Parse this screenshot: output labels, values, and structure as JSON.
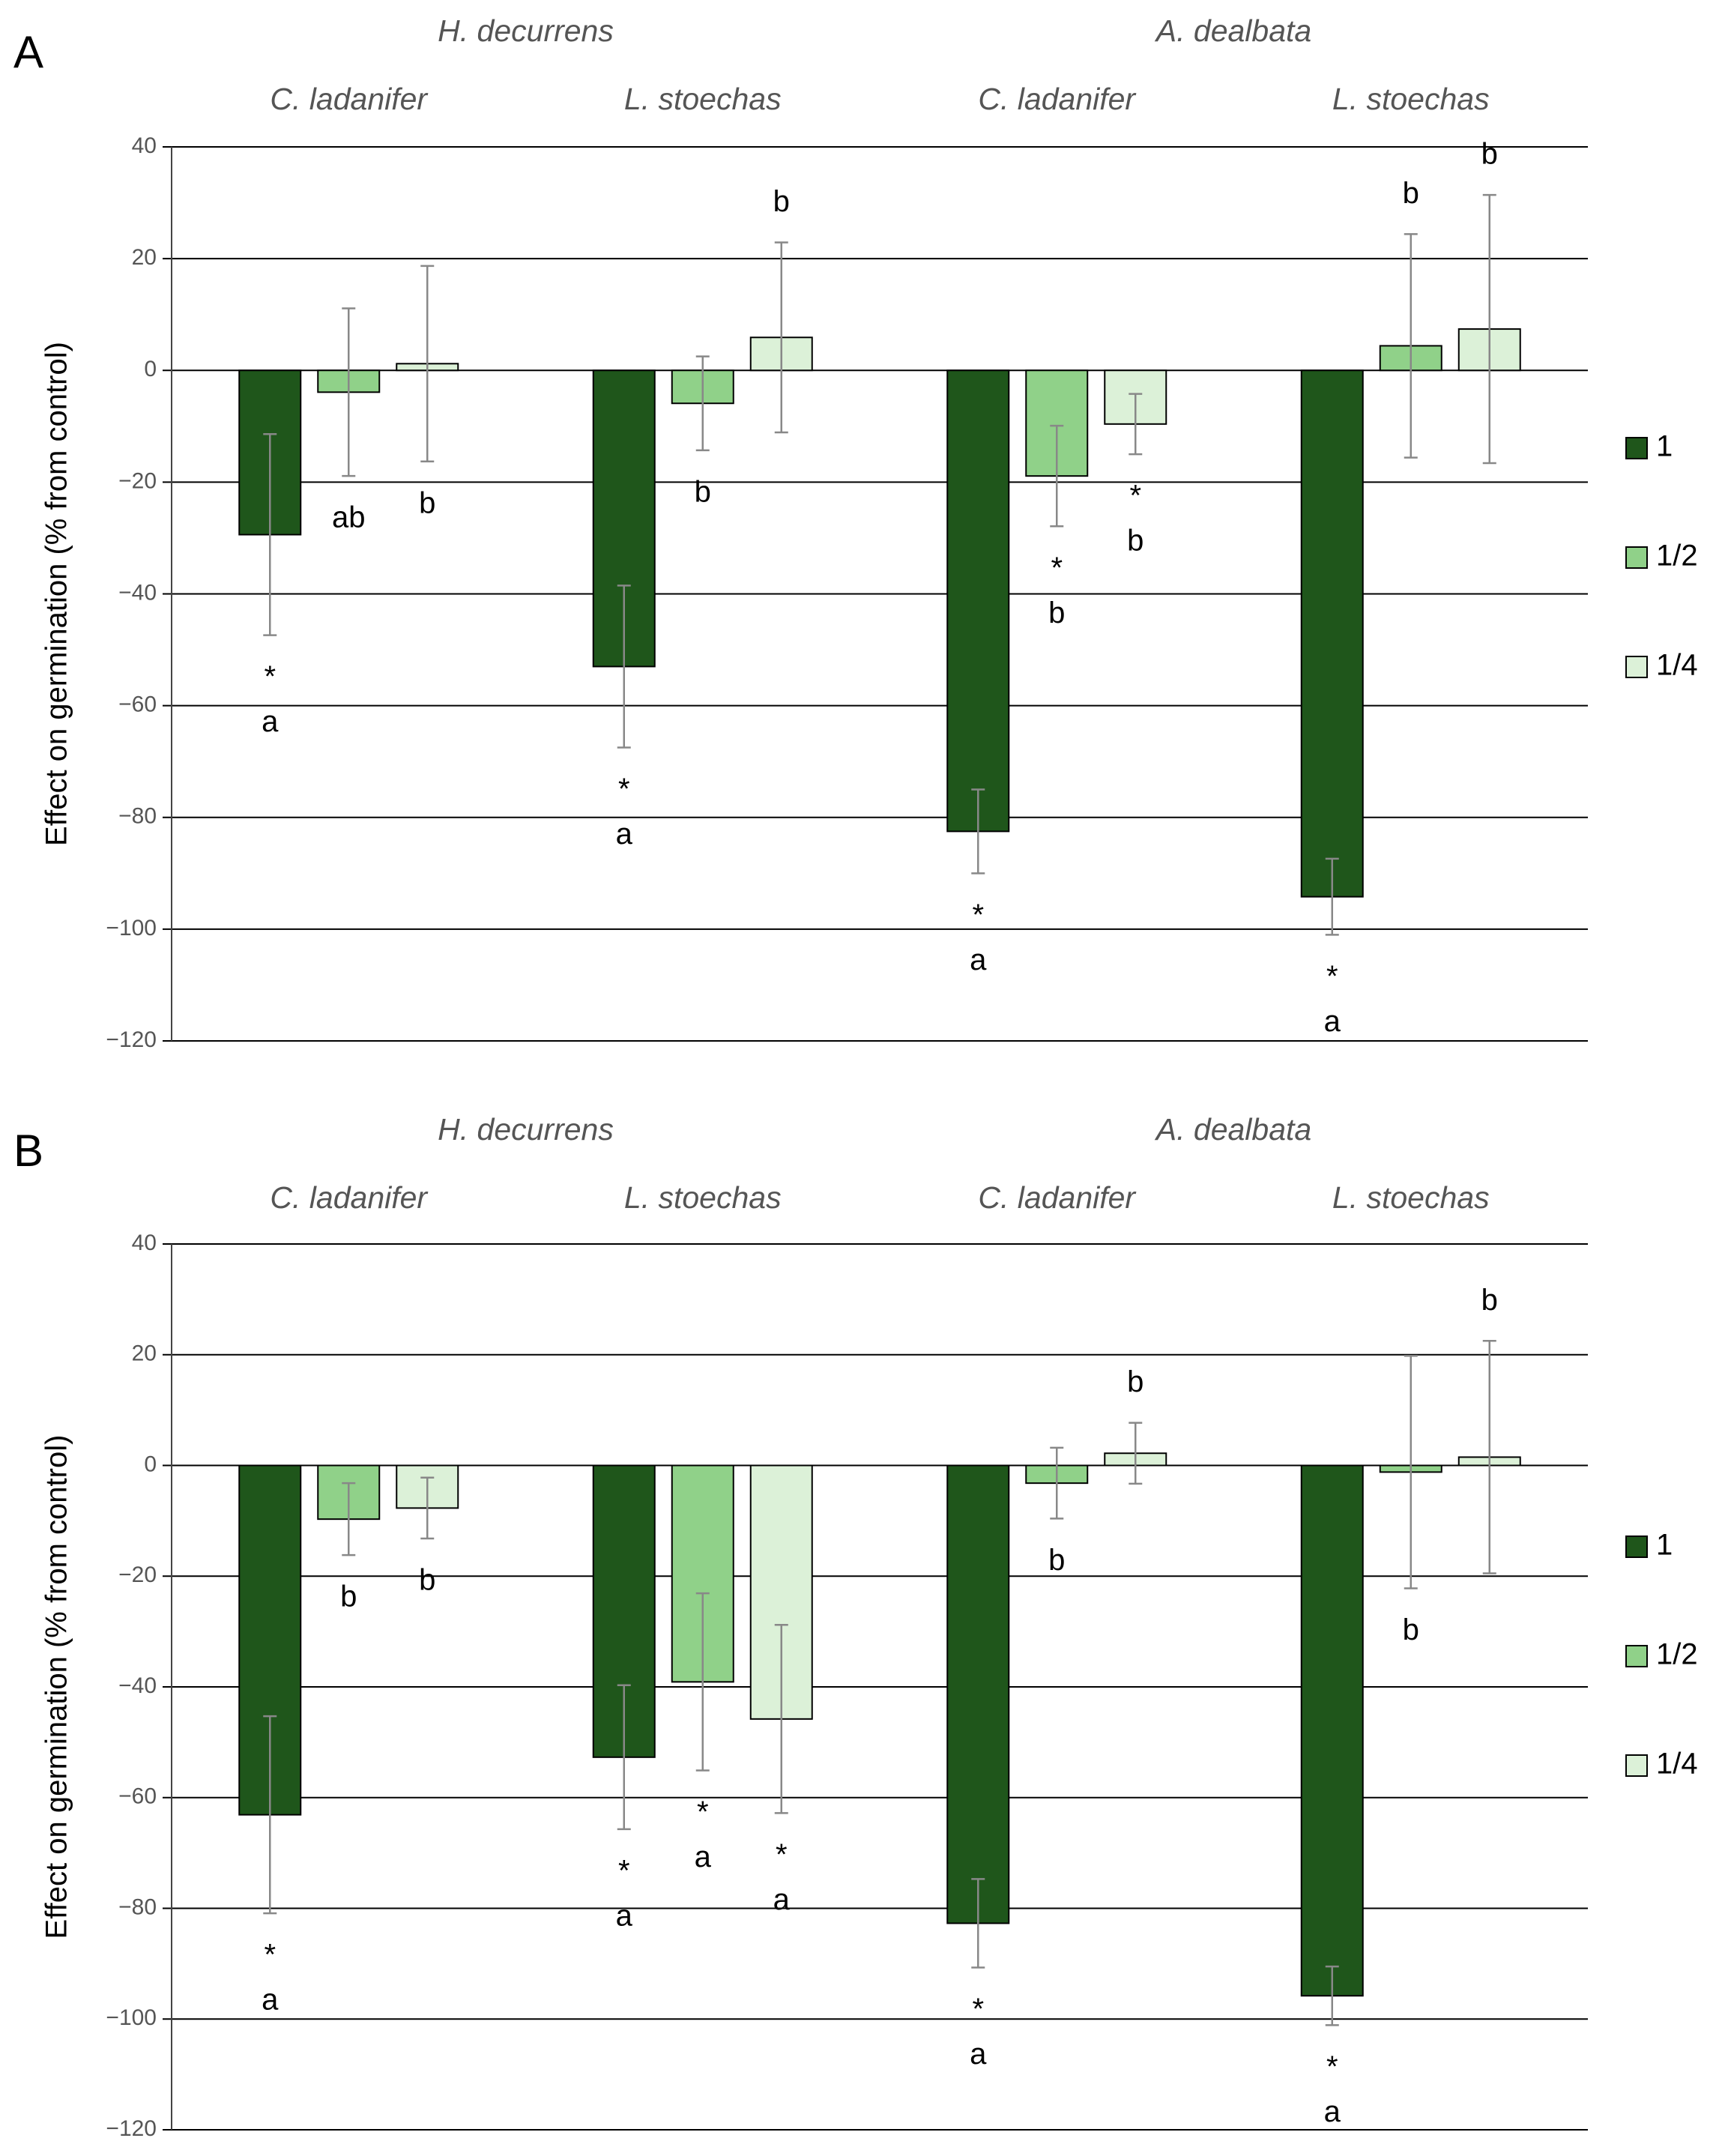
{
  "chart_data": [
    {
      "type": "bar",
      "panel": "A",
      "group_titles": [
        "H. decurrens",
        "A. dealbata"
      ],
      "categories": [
        "C. ladanifer",
        "L. stoechas",
        "C. ladanifer",
        "L. stoechas"
      ],
      "ylabel": "Effect on germination (% from control)",
      "ylim": [
        -120,
        40
      ],
      "yticks": [
        {
          "value": -120,
          "label": "−120"
        },
        {
          "value": -100,
          "label": "−100"
        },
        {
          "value": -80,
          "label": "−80"
        },
        {
          "value": -60,
          "label": "−60"
        },
        {
          "value": -40,
          "label": "−40"
        },
        {
          "value": -20,
          "label": "−20"
        },
        0,
        20,
        40
      ],
      "grid": true,
      "series": [
        {
          "name": "1",
          "color": "#1f561b",
          "values": [
            -29.4,
            -53,
            -82.5,
            -94.2
          ],
          "errors": [
            18,
            14.5,
            7.5,
            6.8
          ],
          "letters": [
            "a",
            "a",
            "a",
            "a"
          ],
          "asterisks": [
            "*",
            "*",
            "*",
            "*"
          ]
        },
        {
          "name": "1/2",
          "color": "#90d189",
          "values": [
            -3.9,
            -5.9,
            -18.9,
            4.4
          ],
          "errors": [
            15,
            8.4,
            9,
            20
          ],
          "letters": [
            "ab",
            "b",
            "b",
            "b"
          ],
          "asterisks": [
            null,
            null,
            "*",
            null
          ]
        },
        {
          "name": "1/4",
          "color": "#dcf1d8",
          "values": [
            1.2,
            5.9,
            -9.6,
            7.4
          ],
          "errors": [
            17.5,
            17,
            5.4,
            24
          ],
          "letters": [
            "b",
            "b",
            "b",
            "b"
          ],
          "asterisks": [
            null,
            null,
            "*",
            null
          ]
        }
      ]
    },
    {
      "type": "bar",
      "panel": "B",
      "group_titles": [
        "H. decurrens",
        "A. dealbata"
      ],
      "categories": [
        "C. ladanifer",
        "L. stoechas",
        "C. ladanifer",
        "L. stoechas"
      ],
      "ylabel": "Effect on germination (% from control)",
      "ylim": [
        -120,
        40
      ],
      "yticks": [
        {
          "value": -120,
          "label": "−120"
        },
        {
          "value": -100,
          "label": "−100"
        },
        {
          "value": -80,
          "label": "−80"
        },
        {
          "value": -60,
          "label": "−60"
        },
        {
          "value": -40,
          "label": "−40"
        },
        {
          "value": -20,
          "label": "−20"
        },
        0,
        20,
        40
      ],
      "grid": true,
      "series": [
        {
          "name": "1",
          "color": "#1f561b",
          "values": [
            -63.1,
            -52.7,
            -82.7,
            -95.8
          ],
          "errors": [
            17.8,
            13,
            8,
            5.3
          ],
          "letters": [
            "a",
            "a",
            "a",
            "a"
          ],
          "asterisks": [
            "*",
            "*",
            "*",
            "*"
          ]
        },
        {
          "name": "1/2",
          "color": "#90d189",
          "values": [
            -9.7,
            -39.1,
            -3.2,
            -1.2
          ],
          "errors": [
            6.5,
            16,
            6.4,
            21
          ],
          "letters": [
            "b",
            "a",
            "b",
            "b"
          ],
          "asterisks": [
            null,
            "*",
            null,
            null
          ]
        },
        {
          "name": "1/4",
          "color": "#dcf1d8",
          "values": [
            -7.7,
            -45.8,
            2.2,
            1.5
          ],
          "errors": [
            5.5,
            17,
            5.5,
            21
          ],
          "letters": [
            "b",
            "a",
            "b",
            "b"
          ],
          "asterisks": [
            null,
            "*",
            null,
            null
          ]
        }
      ]
    }
  ]
}
